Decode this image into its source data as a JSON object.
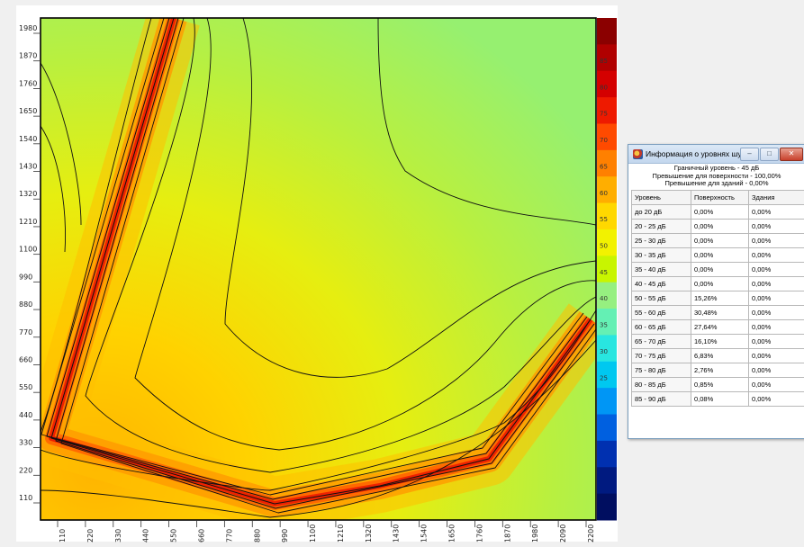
{
  "x_axis": {
    "ticks": [
      110,
      220,
      330,
      440,
      550,
      660,
      770,
      880,
      990,
      1100,
      1210,
      1320,
      1430,
      1540,
      1650,
      1760,
      1870,
      1980,
      2090,
      2200
    ]
  },
  "y_axis": {
    "ticks": [
      110,
      220,
      330,
      440,
      550,
      660,
      770,
      880,
      990,
      1100,
      1210,
      1320,
      1430,
      1540,
      1650,
      1760,
      1870,
      1980
    ]
  },
  "scale": {
    "labels": [
      85,
      80,
      75,
      70,
      65,
      60,
      55,
      50,
      45,
      40,
      35,
      30,
      25
    ],
    "colors": [
      "#8b0000",
      "#b00000",
      "#d40000",
      "#ee1a00",
      "#ff4a00",
      "#ff8000",
      "#ffae00",
      "#ffd800",
      "#f2f200",
      "#c8f500",
      "#96f080",
      "#64f0b4",
      "#28e6e0",
      "#00c8f0",
      "#0096f5",
      "#0060e0",
      "#0030b0",
      "#001a80",
      "#000e60"
    ]
  },
  "info_window": {
    "title": "Информация о уровнях шума",
    "boundary_level": "Граничный уровень - 45 дБ",
    "surface_excess": "Превышение для поверхности - 100,00%",
    "buildings_excess": "Превышение для зданий - 0,00%",
    "headers": [
      "Уровень",
      "Поверхность",
      "Здания"
    ],
    "rows": [
      [
        "до 20 дБ",
        "0,00%",
        "0,00%"
      ],
      [
        "20 - 25 дБ",
        "0,00%",
        "0,00%"
      ],
      [
        "25 - 30 дБ",
        "0,00%",
        "0,00%"
      ],
      [
        "30 - 35 дБ",
        "0,00%",
        "0,00%"
      ],
      [
        "35 - 40 дБ",
        "0,00%",
        "0,00%"
      ],
      [
        "40 - 45 дБ",
        "0,00%",
        "0,00%"
      ],
      [
        "50 - 55 дБ",
        "15,26%",
        "0,00%"
      ],
      [
        "55 - 60 дБ",
        "30,48%",
        "0,00%"
      ],
      [
        "60 - 65 дБ",
        "27,64%",
        "0,00%"
      ],
      [
        "65 - 70 дБ",
        "16,10%",
        "0,00%"
      ],
      [
        "70 - 75 дБ",
        "6,83%",
        "0,00%"
      ],
      [
        "75 - 80 дБ",
        "2,76%",
        "0,00%"
      ],
      [
        "80 - 85 дБ",
        "0,85%",
        "0,00%"
      ],
      [
        "85 - 90 дБ",
        "0,08%",
        "0,00%"
      ]
    ]
  }
}
